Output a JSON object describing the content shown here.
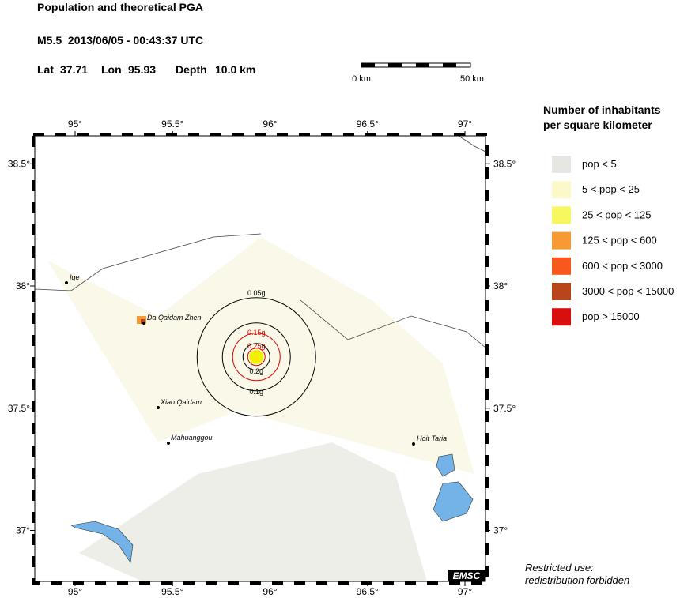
{
  "header": {
    "title": "Population and theoretical PGA",
    "event": "M5.5  2013/06/05 - 00:43:37 UTC",
    "location": {
      "lat_label": "Lat",
      "lat": 37.71,
      "lon_label": "Lon",
      "lon": 95.93,
      "depth_label": "Depth",
      "depth": "10.0 km"
    }
  },
  "scale_bar": {
    "start": "0 km",
    "end": "50 km"
  },
  "legend": {
    "title": [
      "Number of inhabitants",
      "per square kilometer"
    ],
    "items": [
      {
        "label": "pop < 5",
        "color": "#e6e6e3"
      },
      {
        "label": "5 < pop < 25",
        "color": "#fbf9c9"
      },
      {
        "label": "25 < pop < 125",
        "color": "#f7f760"
      },
      {
        "label": "125 < pop < 600",
        "color": "#f79a35"
      },
      {
        "label": "600 < pop < 3000",
        "color": "#f7581c"
      },
      {
        "label": "3000 < pop < 15000",
        "color": "#b8461a"
      },
      {
        "label": "pop > 15000",
        "color": "#d90f0f"
      }
    ]
  },
  "map": {
    "lon_ticks": [
      {
        "value": 95,
        "label": "95°"
      },
      {
        "value": 95.5,
        "label": "95.5°"
      },
      {
        "value": 96,
        "label": "96°"
      },
      {
        "value": 96.5,
        "label": "96.5°"
      },
      {
        "value": 97,
        "label": "97°"
      }
    ],
    "lat_ticks": [
      {
        "value": 38.5,
        "label": "38.5°"
      },
      {
        "value": 38,
        "label": "38°"
      },
      {
        "value": 37.5,
        "label": "37.5°"
      },
      {
        "value": 37,
        "label": "37°"
      }
    ],
    "pga_rings": [
      "0.05g",
      "0.15g",
      "0.25g",
      "0.2g",
      "0.1g"
    ],
    "places": [
      "Iqe",
      "Da Qaidam Zhen",
      "Xiao Qaidam",
      "Mahuanggou",
      "Hoit Taria"
    ],
    "logo": "EMSC"
  },
  "notice": [
    "Restricted use:",
    "redistribution forbidden"
  ]
}
